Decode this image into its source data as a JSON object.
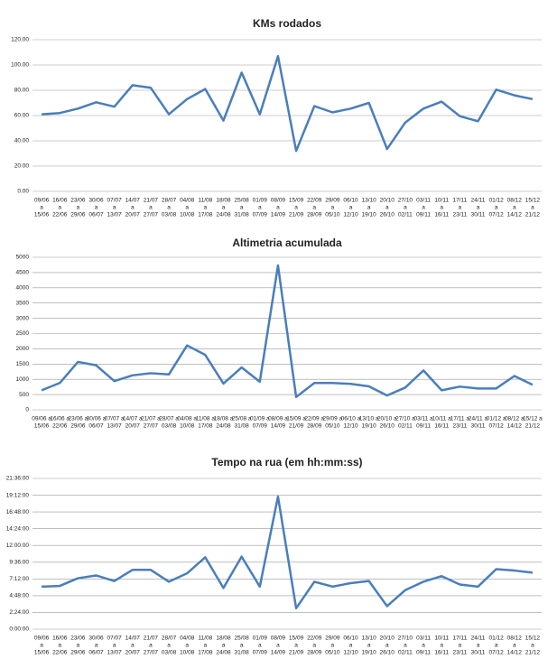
{
  "chart_data": [
    {
      "type": "line",
      "title": "KMs rodados",
      "categories": [
        [
          "09/06",
          "a",
          "15/06"
        ],
        [
          "16/06",
          "a",
          "22/06"
        ],
        [
          "23/06",
          "a",
          "29/06"
        ],
        [
          "30/06",
          "a",
          "06/07"
        ],
        [
          "07/07",
          "a",
          "13/07"
        ],
        [
          "14/07",
          "a",
          "20/07"
        ],
        [
          "21/07",
          "a",
          "27/07"
        ],
        [
          "28/07",
          "a",
          "03/08"
        ],
        [
          "04/08",
          "a",
          "10/08"
        ],
        [
          "11/08",
          "a",
          "17/08"
        ],
        [
          "18/08",
          "a",
          "24/08"
        ],
        [
          "25/08",
          "a",
          "31/08"
        ],
        [
          "01/09",
          "a",
          "07/09"
        ],
        [
          "08/09",
          "a",
          "14/09"
        ],
        [
          "15/09",
          "a",
          "21/09"
        ],
        [
          "22/09",
          "a",
          "28/09"
        ],
        [
          "29/09",
          "a",
          "05/10"
        ],
        [
          "06/10",
          "a",
          "12/10"
        ],
        [
          "13/10",
          "a",
          "19/10"
        ],
        [
          "20/10",
          "a",
          "26/10"
        ],
        [
          "27/10",
          "a",
          "02/11"
        ],
        [
          "03/11",
          "a",
          "09/11"
        ],
        [
          "10/11",
          "a",
          "16/11"
        ],
        [
          "17/11",
          "a",
          "23/11"
        ],
        [
          "24/11",
          "a",
          "30/11"
        ],
        [
          "01/12",
          "a",
          "07/12"
        ],
        [
          "08/12",
          "a",
          "14/12"
        ],
        [
          "15/12",
          "a",
          "21/12"
        ]
      ],
      "values": [
        61,
        62,
        65.5,
        70.5,
        67,
        84,
        82,
        61,
        73,
        81,
        56,
        94,
        61,
        107,
        32,
        67.5,
        62.5,
        65.5,
        70,
        33.5,
        54.5,
        65.5,
        71,
        59.5,
        55.5,
        80.5,
        76,
        73
      ],
      "color": "#4a7ebb",
      "grid": true,
      "ylim": [
        0,
        120
      ],
      "yticks": [
        {
          "value": 0,
          "label": "0.00"
        },
        {
          "value": 20,
          "label": "20.00"
        },
        {
          "value": 40,
          "label": "40.00"
        },
        {
          "value": 60,
          "label": "60.00"
        },
        {
          "value": 80,
          "label": "80.00"
        },
        {
          "value": 100,
          "label": "100.00"
        },
        {
          "value": 120,
          "label": "120.00"
        }
      ]
    },
    {
      "type": "line",
      "title": "Altimetria acumulada",
      "categories": [
        [
          "09/06 a",
          "15/06"
        ],
        [
          "16/06 a",
          "22/06"
        ],
        [
          "23/06 a",
          "29/06"
        ],
        [
          "30/06 a",
          "06/07"
        ],
        [
          "07/07 a",
          "13/07"
        ],
        [
          "14/07 a",
          "20/07"
        ],
        [
          "21/07 a",
          "27/07"
        ],
        [
          "28/07 a",
          "03/08"
        ],
        [
          "04/08 a",
          "10/08"
        ],
        [
          "11/08 a",
          "17/08"
        ],
        [
          "18/08 a",
          "24/08"
        ],
        [
          "25/08 a",
          "31/08"
        ],
        [
          "01/09 a",
          "07/09"
        ],
        [
          "08/09 a",
          "14/09"
        ],
        [
          "15/09 a",
          "21/09"
        ],
        [
          "22/09 a",
          "28/09"
        ],
        [
          "29/09 a",
          "05/10"
        ],
        [
          "06/10 a",
          "12/10"
        ],
        [
          "13/10 a",
          "19/10"
        ],
        [
          "20/10 a",
          "26/10"
        ],
        [
          "27/10 a",
          "02/11"
        ],
        [
          "03/11 a",
          "09/11"
        ],
        [
          "10/11 a",
          "16/11"
        ],
        [
          "17/11 a",
          "23/11"
        ],
        [
          "24/11 a",
          "30/11"
        ],
        [
          "01/12 a",
          "07/12"
        ],
        [
          "08/12 a",
          "14/12"
        ],
        [
          "15/12 a",
          "21/12"
        ]
      ],
      "values": [
        640,
        880,
        1570,
        1460,
        940,
        1130,
        1200,
        1160,
        2110,
        1800,
        860,
        1390,
        920,
        4730,
        420,
        880,
        880,
        850,
        770,
        470,
        730,
        1290,
        640,
        760,
        700,
        700,
        1110,
        820
      ],
      "color": "#4a7ebb",
      "grid": true,
      "ylim": [
        0,
        5000
      ],
      "yticks": [
        0,
        500,
        1000,
        1500,
        2000,
        2500,
        3000,
        3500,
        4000,
        4500,
        5000
      ]
    },
    {
      "type": "line",
      "title": "Tempo na rua (em hh:mm:ss)",
      "categories": [
        [
          "09/06",
          "a",
          "15/06"
        ],
        [
          "16/06",
          "a",
          "22/06"
        ],
        [
          "23/06",
          "a",
          "29/06"
        ],
        [
          "30/06",
          "a",
          "06/07"
        ],
        [
          "07/07",
          "a",
          "13/07"
        ],
        [
          "14/07",
          "a",
          "20/07"
        ],
        [
          "21/07",
          "a",
          "27/07"
        ],
        [
          "28/07",
          "a",
          "03/08"
        ],
        [
          "04/08",
          "a",
          "10/08"
        ],
        [
          "11/08",
          "a",
          "17/08"
        ],
        [
          "18/08",
          "a",
          "24/08"
        ],
        [
          "25/08",
          "a",
          "31/08"
        ],
        [
          "01/09",
          "a",
          "07/09"
        ],
        [
          "08/09",
          "a",
          "14/09"
        ],
        [
          "15/09",
          "a",
          "21/09"
        ],
        [
          "22/09",
          "a",
          "28/09"
        ],
        [
          "29/09",
          "a",
          "05/10"
        ],
        [
          "06/10",
          "a",
          "12/10"
        ],
        [
          "13/10",
          "a",
          "19/10"
        ],
        [
          "20/10",
          "a",
          "26/10"
        ],
        [
          "27/10",
          "a",
          "02/11"
        ],
        [
          "03/11",
          "a",
          "09/11"
        ],
        [
          "10/11",
          "a",
          "16/11"
        ],
        [
          "17/11",
          "a",
          "23/11"
        ],
        [
          "24/11",
          "a",
          "30/11"
        ],
        [
          "01/12",
          "a",
          "07/12"
        ],
        [
          "08/12",
          "a",
          "14/12"
        ],
        [
          "15/12",
          "a",
          "21/12"
        ]
      ],
      "values": [
        6.1,
        6.2,
        7.3,
        7.7,
        6.9,
        8.5,
        8.5,
        6.8,
        8.0,
        10.3,
        5.9,
        10.4,
        6.1,
        19.0,
        3.0,
        6.8,
        6.1,
        6.6,
        6.9,
        3.3,
        5.6,
        6.8,
        7.6,
        6.4,
        6.1,
        8.6,
        8.4,
        8.1
      ],
      "color": "#4a7ebb",
      "grid": true,
      "ylim": [
        0,
        21.6
      ],
      "yticks": [
        {
          "value": 0,
          "label": "0:00:00"
        },
        {
          "value": 2.4,
          "label": "2:24:00"
        },
        {
          "value": 4.8,
          "label": "4:48:00"
        },
        {
          "value": 7.2,
          "label": "7:12:00"
        },
        {
          "value": 9.6,
          "label": "9:36:00"
        },
        {
          "value": 12,
          "label": "12:00:00"
        },
        {
          "value": 14.4,
          "label": "14:24:00"
        },
        {
          "value": 16.8,
          "label": "16:48:00"
        },
        {
          "value": 19.2,
          "label": "19:12:00"
        },
        {
          "value": 21.6,
          "label": "21:36:00"
        }
      ]
    }
  ]
}
